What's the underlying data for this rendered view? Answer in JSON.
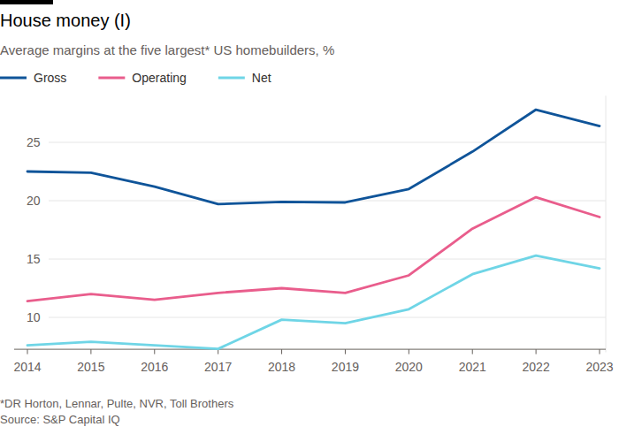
{
  "chart_data": {
    "type": "line",
    "title": "House money (I)",
    "subtitle": "Average margins at the five largest* US homebuilders, %",
    "notes": [
      "*DR Horton, Lennar, Pulte, NVR, Toll Brothers",
      "Source: S&P Capital IQ"
    ],
    "x": [
      2014,
      2015,
      2016,
      2017,
      2018,
      2019,
      2020,
      2021,
      2022,
      2023
    ],
    "xlim": [
      2014,
      2023
    ],
    "xticks": [
      2014,
      2015,
      2016,
      2017,
      2018,
      2019,
      2020,
      2021,
      2022,
      2023
    ],
    "ylim": [
      7,
      29
    ],
    "yticks": [
      10,
      15,
      20,
      25
    ],
    "grid": true,
    "legend": "top-left",
    "series": [
      {
        "name": "Gross",
        "color": "#0f5499",
        "values": [
          22.5,
          22.4,
          21.2,
          19.7,
          19.9,
          19.85,
          21.0,
          24.2,
          27.8,
          26.4
        ]
      },
      {
        "name": "Operating",
        "color": "#e95d8c",
        "values": [
          11.4,
          12.0,
          11.5,
          12.1,
          12.5,
          12.1,
          13.6,
          17.6,
          20.3,
          18.6
        ]
      },
      {
        "name": "Net",
        "color": "#6fd5e6",
        "values": [
          7.6,
          7.9,
          7.6,
          7.3,
          9.8,
          9.5,
          10.7,
          13.7,
          15.3,
          14.2
        ]
      }
    ]
  }
}
